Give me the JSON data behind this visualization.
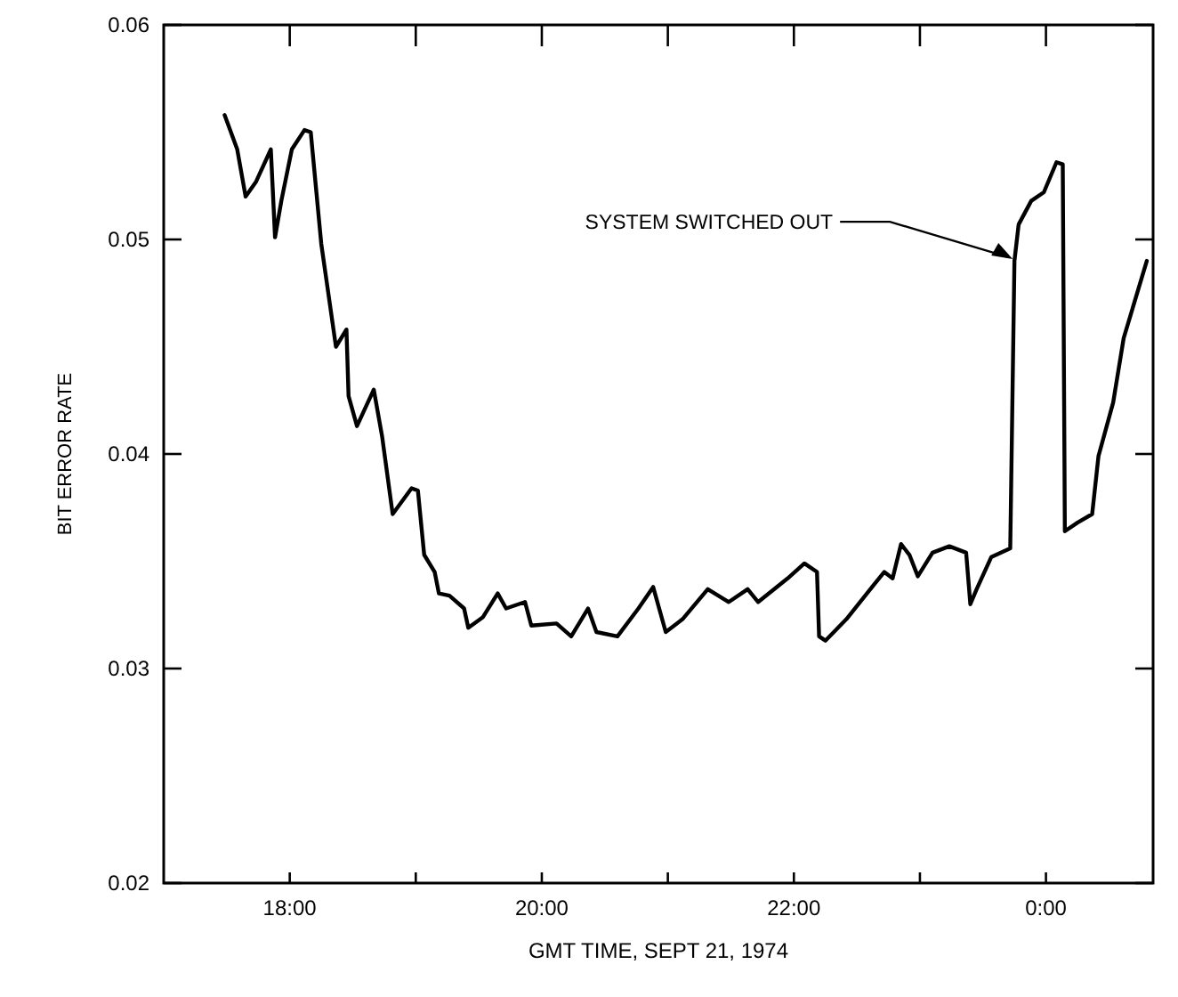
{
  "chart_data": {
    "type": "line",
    "xlabel": "GMT TIME, SEPT 21, 1974",
    "ylabel": "BIT ERROR RATE",
    "xlim": [
      "1974-09-21T17:00",
      "1974-09-22T00:51"
    ],
    "ylim": [
      0.02,
      0.06
    ],
    "xticks": [
      {
        "value": "1974-09-21T18:00",
        "label": "18:00"
      },
      {
        "value": "1974-09-21T19:00",
        "label": null
      },
      {
        "value": "1974-09-21T20:00",
        "label": "20:00"
      },
      {
        "value": "1974-09-21T21:00",
        "label": null
      },
      {
        "value": "1974-09-21T22:00",
        "label": "22:00"
      },
      {
        "value": "1974-09-21T23:00",
        "label": null
      },
      {
        "value": "1974-09-22T00:00",
        "label": "0:00"
      }
    ],
    "yticks": [
      0.02,
      0.03,
      0.04,
      0.05,
      0.06
    ],
    "grid": false,
    "marker": "none",
    "line_style": "solid",
    "annotations": [
      {
        "text": "SYSTEM SWITCHED OUT",
        "x": "1974-09-21T23:45",
        "y": 0.049
      }
    ],
    "series": [
      {
        "color": "#000000",
        "x": [
          "1974-09-21T17:29",
          "1974-09-21T17:35",
          "1974-09-21T17:39",
          "1974-09-21T17:44",
          "1974-09-21T17:51",
          "1974-09-21T17:53",
          "1974-09-21T17:56",
          "1974-09-21T18:01",
          "1974-09-21T18:07",
          "1974-09-21T18:10",
          "1974-09-21T18:15",
          "1974-09-21T18:22",
          "1974-09-21T18:27",
          "1974-09-21T18:28",
          "1974-09-21T18:32",
          "1974-09-21T18:40",
          "1974-09-21T18:44",
          "1974-09-21T18:49",
          "1974-09-21T18:58",
          "1974-09-21T19:01",
          "1974-09-21T19:04",
          "1974-09-21T19:09",
          "1974-09-21T19:11",
          "1974-09-21T19:16",
          "1974-09-21T19:23",
          "1974-09-21T19:25",
          "1974-09-21T19:32",
          "1974-09-21T19:39",
          "1974-09-21T19:43",
          "1974-09-21T19:52",
          "1974-09-21T19:55",
          "1974-09-21T20:07",
          "1974-09-21T20:14",
          "1974-09-21T20:22",
          "1974-09-21T20:26",
          "1974-09-21T20:36",
          "1974-09-21T20:46",
          "1974-09-21T20:53",
          "1974-09-21T20:59",
          "1974-09-21T21:07",
          "1974-09-21T21:19",
          "1974-09-21T21:29",
          "1974-09-21T21:38",
          "1974-09-21T21:43",
          "1974-09-21T21:57",
          "1974-09-21T22:05",
          "1974-09-21T22:11",
          "1974-09-21T22:12",
          "1974-09-21T22:15",
          "1974-09-21T22:25",
          "1974-09-21T22:38",
          "1974-09-21T22:43",
          "1974-09-21T22:47",
          "1974-09-21T22:51",
          "1974-09-21T22:55",
          "1974-09-21T22:59",
          "1974-09-21T23:06",
          "1974-09-21T23:14",
          "1974-09-21T23:22",
          "1974-09-21T23:24",
          "1974-09-21T23:27",
          "1974-09-21T23:34",
          "1974-09-21T23:43",
          "1974-09-21T23:45",
          "1974-09-21T23:47",
          "1974-09-21T23:53",
          "1974-09-21T23:59",
          "1974-09-22T00:05",
          "1974-09-22T00:08",
          "1974-09-22T00:09",
          "1974-09-22T00:15",
          "1974-09-22T00:22",
          "1974-09-22T00:25",
          "1974-09-22T00:32",
          "1974-09-22T00:37",
          "1974-09-22T00:48"
        ],
        "values": [
          0.0558,
          0.0542,
          0.052,
          0.0527,
          0.0542,
          0.0501,
          0.0518,
          0.0542,
          0.0551,
          0.055,
          0.0498,
          0.045,
          0.0458,
          0.0427,
          0.0413,
          0.043,
          0.0408,
          0.0372,
          0.0384,
          0.0383,
          0.0353,
          0.0345,
          0.0335,
          0.0334,
          0.0328,
          0.0319,
          0.0324,
          0.0335,
          0.0328,
          0.0331,
          0.032,
          0.0321,
          0.0315,
          0.0328,
          0.0317,
          0.0315,
          0.0328,
          0.0338,
          0.0317,
          0.0323,
          0.0337,
          0.0331,
          0.0337,
          0.0331,
          0.0342,
          0.0349,
          0.0345,
          0.0315,
          0.0313,
          0.0323,
          0.0339,
          0.0345,
          0.0342,
          0.0358,
          0.0353,
          0.0343,
          0.0354,
          0.0357,
          0.0354,
          0.033,
          0.0337,
          0.0352,
          0.0356,
          0.049,
          0.0507,
          0.0518,
          0.0522,
          0.0536,
          0.0535,
          0.0364,
          0.0368,
          0.0372,
          0.0399,
          0.0424,
          0.0454,
          0.049
        ]
      }
    ]
  }
}
